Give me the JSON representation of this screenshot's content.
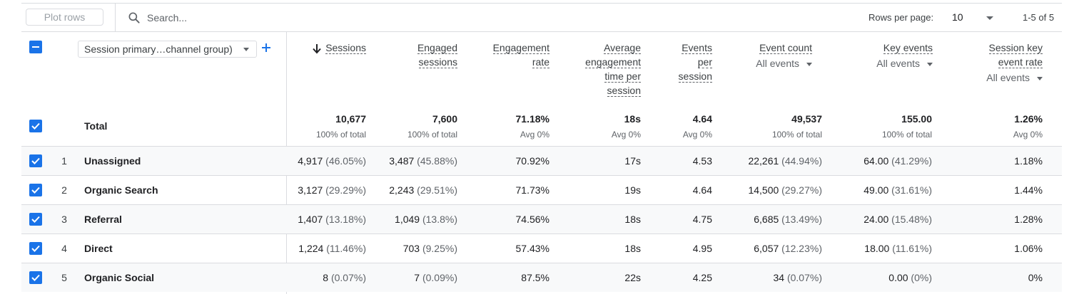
{
  "toolbar": {
    "plot_rows_label": "Plot rows",
    "search_placeholder": "Search...",
    "rows_per_page_label": "Rows per page:",
    "rows_per_page_value": "10",
    "pagination": "1-5 of 5"
  },
  "dimension": {
    "selector_label": "Session primary…channel group)"
  },
  "columns": [
    {
      "title": "Sessions",
      "sorted": "descending"
    },
    {
      "title": "Engaged sessions"
    },
    {
      "title": "Engagement rate"
    },
    {
      "title": "Average engagement time per session"
    },
    {
      "title": "Events per session"
    },
    {
      "title": "Event count",
      "filter": "All events"
    },
    {
      "title": "Key events",
      "filter": "All events"
    },
    {
      "title": "Session key event rate",
      "filter": "All events"
    }
  ],
  "column_title_lines": {
    "sessions": [
      "Sessions"
    ],
    "engaged": [
      "Engaged",
      "sessions"
    ],
    "engrate": [
      "Engagement",
      "rate"
    ],
    "avgtime": [
      "Average",
      "engagement",
      "time per",
      "session"
    ],
    "eventsper": [
      "Events",
      "per",
      "session"
    ],
    "eventcount": [
      "Event count"
    ],
    "keyevents": [
      "Key events"
    ],
    "keyrate": [
      "Session key",
      "event rate"
    ]
  },
  "totals": {
    "label": "Total",
    "values": [
      "10,677",
      "7,600",
      "71.18%",
      "18s",
      "4.64",
      "49,537",
      "155.00",
      "1.26%"
    ],
    "subs": [
      "100% of total",
      "100% of total",
      "Avg 0%",
      "Avg 0%",
      "Avg 0%",
      "100% of total",
      "100% of total",
      "Avg 0%"
    ]
  },
  "rows": [
    {
      "num": "1",
      "name": "Unassigned",
      "cells": [
        [
          "4,917",
          " (46.05%)"
        ],
        [
          "3,487",
          " (45.88%)"
        ],
        [
          "70.92%",
          ""
        ],
        [
          "17s",
          ""
        ],
        [
          "4.53",
          ""
        ],
        [
          "22,261",
          " (44.94%)"
        ],
        [
          "64.00",
          " (41.29%)"
        ],
        [
          "1.18%",
          ""
        ]
      ]
    },
    {
      "num": "2",
      "name": "Organic Search",
      "cells": [
        [
          "3,127",
          " (29.29%)"
        ],
        [
          "2,243",
          " (29.51%)"
        ],
        [
          "71.73%",
          ""
        ],
        [
          "19s",
          ""
        ],
        [
          "4.64",
          ""
        ],
        [
          "14,500",
          " (29.27%)"
        ],
        [
          "49.00",
          " (31.61%)"
        ],
        [
          "1.44%",
          ""
        ]
      ]
    },
    {
      "num": "3",
      "name": "Referral",
      "cells": [
        [
          "1,407",
          " (13.18%)"
        ],
        [
          "1,049",
          " (13.8%)"
        ],
        [
          "74.56%",
          ""
        ],
        [
          "18s",
          ""
        ],
        [
          "4.75",
          ""
        ],
        [
          "6,685",
          " (13.49%)"
        ],
        [
          "24.00",
          " (15.48%)"
        ],
        [
          "1.28%",
          ""
        ]
      ]
    },
    {
      "num": "4",
      "name": "Direct",
      "cells": [
        [
          "1,224",
          " (11.46%)"
        ],
        [
          "703",
          " (9.25%)"
        ],
        [
          "57.43%",
          ""
        ],
        [
          "18s",
          ""
        ],
        [
          "4.95",
          ""
        ],
        [
          "6,057",
          " (12.23%)"
        ],
        [
          "18.00",
          " (11.61%)"
        ],
        [
          "1.06%",
          ""
        ]
      ]
    },
    {
      "num": "5",
      "name": "Organic Social",
      "cells": [
        [
          "8",
          " (0.07%)"
        ],
        [
          "7",
          " (0.09%)"
        ],
        [
          "87.5%",
          ""
        ],
        [
          "22s",
          ""
        ],
        [
          "4.25",
          ""
        ],
        [
          "34",
          " (0.07%)"
        ],
        [
          "0.00",
          " (0%)"
        ],
        [
          "0%",
          ""
        ]
      ]
    }
  ],
  "colors": {
    "accent": "#1a73e8",
    "border": "#dadce0",
    "row_shade": "#f8f9fa",
    "muted": "#5f6368"
  }
}
